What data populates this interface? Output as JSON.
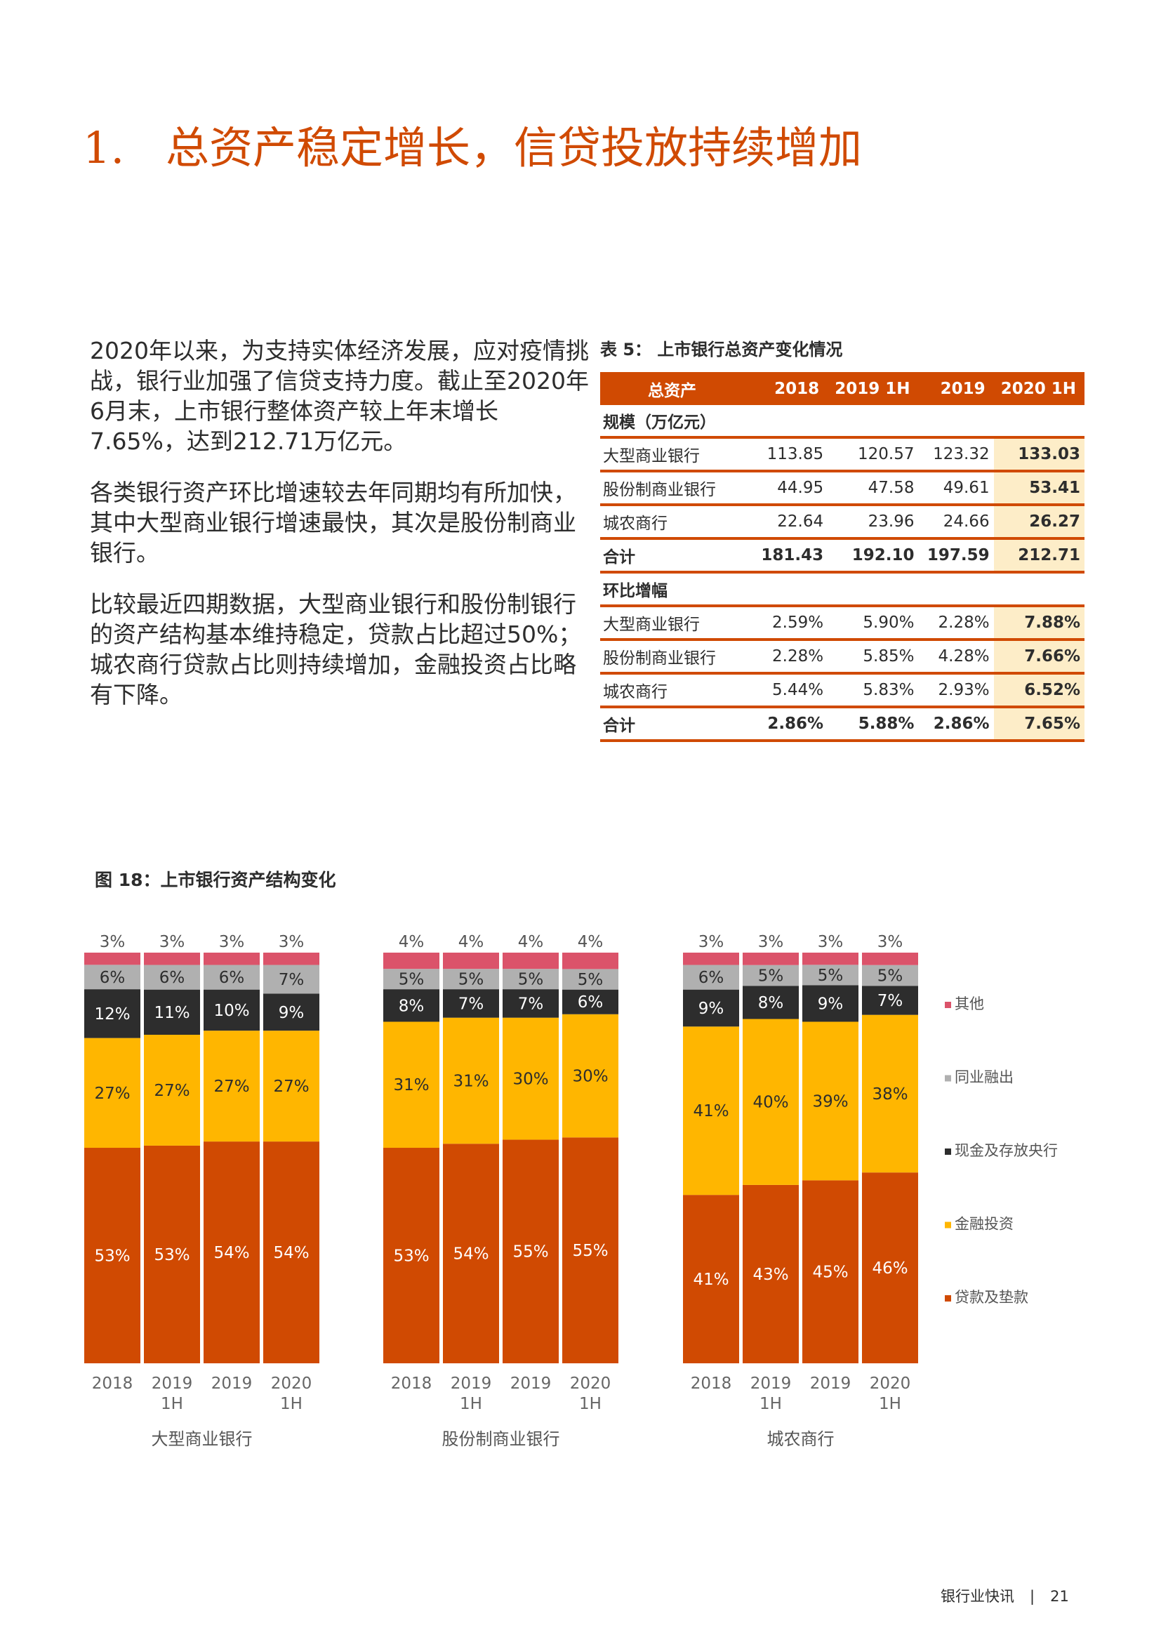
{
  "heading": {
    "number": "1.",
    "text": "总资产稳定增长，信贷投放持续增加"
  },
  "paragraphs": [
    "2020年以来，为支持实体经济发展，应对疫情挑战，银行业加强了信贷支持力度。截止至2020年6月末，上市银行整体资产较上年末增长7.65%，达到212.71万亿元。",
    "各类银行资产环比增速较去年同期均有所加快，其中大型商业银行增速最快，其次是股份制商业银行。",
    "比较最近四期数据，大型商业银行和股份制银行的资产结构基本维持稳定，贷款占比超过50%；城农商行贷款占比则持续增加，金融投资占比略有下降。"
  ],
  "table": {
    "caption": "表 5：  上市银行总资产变化情况",
    "headers": [
      "总资产",
      "2018",
      "2019 1H",
      "2019",
      "2020 1H"
    ],
    "sections": [
      {
        "title": "规模（万亿元）",
        "rows": [
          {
            "label": "大型商业银行",
            "values": [
              "113.85",
              "120.57",
              "123.32",
              "133.03"
            ]
          },
          {
            "label": "股份制商业银行",
            "values": [
              "44.95",
              "47.58",
              "49.61",
              "53.41"
            ]
          },
          {
            "label": "城农商行",
            "values": [
              "22.64",
              "23.96",
              "24.66",
              "26.27"
            ]
          },
          {
            "label": "合计",
            "values": [
              "181.43",
              "192.10",
              "197.59",
              "212.71"
            ],
            "total": true
          }
        ]
      },
      {
        "title": "环比增幅",
        "rows": [
          {
            "label": "大型商业银行",
            "values": [
              "2.59%",
              "5.90%",
              "2.28%",
              "7.88%"
            ]
          },
          {
            "label": "股份制商业银行",
            "values": [
              "2.28%",
              "5.85%",
              "4.28%",
              "7.66%"
            ]
          },
          {
            "label": "城农商行",
            "values": [
              "5.44%",
              "5.83%",
              "2.93%",
              "6.52%"
            ]
          },
          {
            "label": "合计",
            "values": [
              "2.86%",
              "5.88%",
              "2.86%",
              "7.65%"
            ],
            "total": true
          }
        ]
      }
    ]
  },
  "figure_caption": "图 18：上市银行资产结构变化",
  "chart_data": {
    "type": "bar",
    "stacked": true,
    "percent": true,
    "categories": [
      [
        "2018"
      ],
      [
        "2019",
        "1H"
      ],
      [
        "2019"
      ],
      [
        "2020",
        "1H"
      ]
    ],
    "legend_position": "right",
    "series": [
      {
        "name": "贷款及垫款",
        "color": "#d04a02"
      },
      {
        "name": "金融投资",
        "color": "#ffb600"
      },
      {
        "name": "现金及存放央行",
        "color": "#2d2d2d"
      },
      {
        "name": "同业融出",
        "color": "#b0b0b0"
      },
      {
        "name": "其他",
        "color": "#db536a"
      }
    ],
    "groups": [
      {
        "name": "大型商业银行",
        "values": [
          [
            53,
            27,
            12,
            6,
            3
          ],
          [
            53,
            27,
            11,
            6,
            3
          ],
          [
            54,
            27,
            10,
            6,
            3
          ],
          [
            54,
            27,
            9,
            7,
            3
          ]
        ]
      },
      {
        "name": "股份制商业银行",
        "values": [
          [
            53,
            31,
            8,
            5,
            4
          ],
          [
            54,
            31,
            7,
            5,
            4
          ],
          [
            55,
            30,
            7,
            5,
            4
          ],
          [
            55,
            30,
            6,
            5,
            4
          ]
        ]
      },
      {
        "name": "城农商行",
        "values": [
          [
            41,
            41,
            9,
            6,
            3
          ],
          [
            43,
            40,
            8,
            5,
            3
          ],
          [
            45,
            39,
            9,
            5,
            3
          ],
          [
            46,
            38,
            7,
            5,
            3
          ]
        ]
      }
    ]
  },
  "footer": {
    "publication": "银行业快讯",
    "separator": "|",
    "page": "21"
  }
}
